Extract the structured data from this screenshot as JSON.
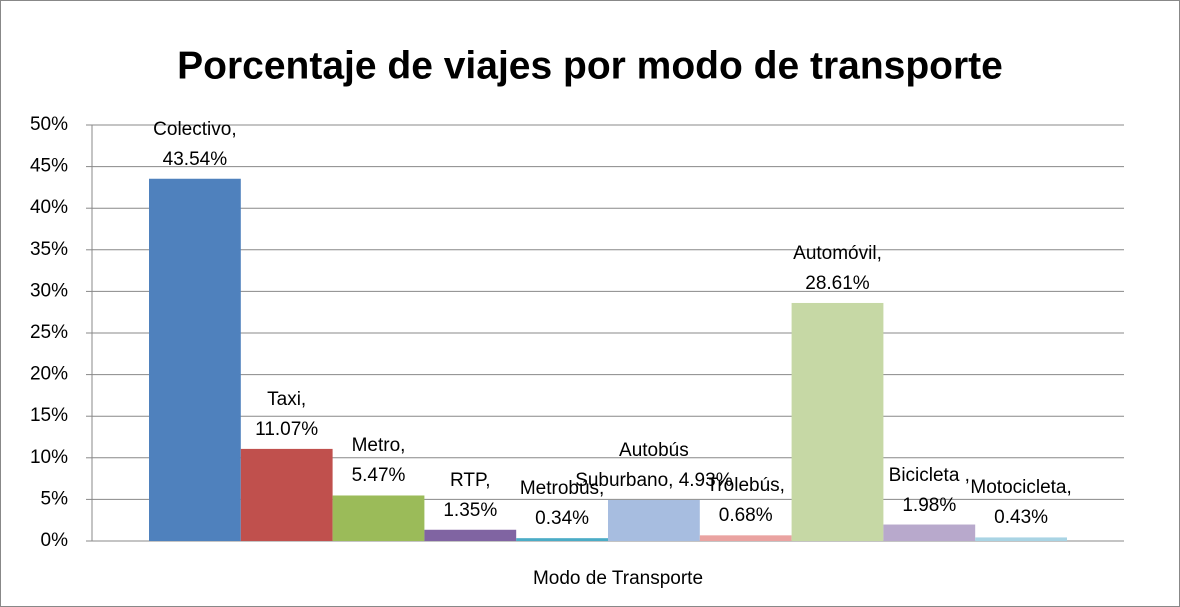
{
  "chart_data": {
    "type": "bar",
    "title": "Porcentaje de viajes por modo de transporte",
    "x_label": "Modo de Transporte",
    "values": [
      43.54,
      11.07,
      5.47,
      1.35,
      0.34,
      4.93,
      0.68,
      28.61,
      1.98,
      0.43
    ],
    "value_labels": [
      "Colectivo,\n43.54%",
      "Taxi,\n11.07%",
      "Metro,\n5.47%",
      "RTP,\n1.35%",
      "Metrobús,\n0.34%",
      "Autobús\nSuburbano, 4.93%",
      "Trolebús,\n0.68%",
      "Automóvil,\n28.61%",
      "Bicicleta ,\n1.98%",
      "Motocicleta,\n0.43%"
    ],
    "colors": [
      "#4f81bd",
      "#c0504d",
      "#9bbb59",
      "#8064a2",
      "#4bacc6",
      "#a7bde0",
      "#eaa3a1",
      "#c6d8a5",
      "#b8a9cc",
      "#a9d4e4"
    ],
    "ylim": [
      0,
      50
    ],
    "yticks": [
      {
        "value": 0,
        "label": "0%"
      },
      {
        "value": 5,
        "label": "5%"
      },
      {
        "value": 10,
        "label": "10%"
      },
      {
        "value": 15,
        "label": "15%"
      },
      {
        "value": 20,
        "label": "20%"
      },
      {
        "value": 25,
        "label": "25%"
      },
      {
        "value": 30,
        "label": "30%"
      },
      {
        "value": 35,
        "label": "35%"
      },
      {
        "value": 40,
        "label": "40%"
      },
      {
        "value": 45,
        "label": "45%"
      },
      {
        "value": 50,
        "label": "50%"
      }
    ],
    "grid": true
  }
}
